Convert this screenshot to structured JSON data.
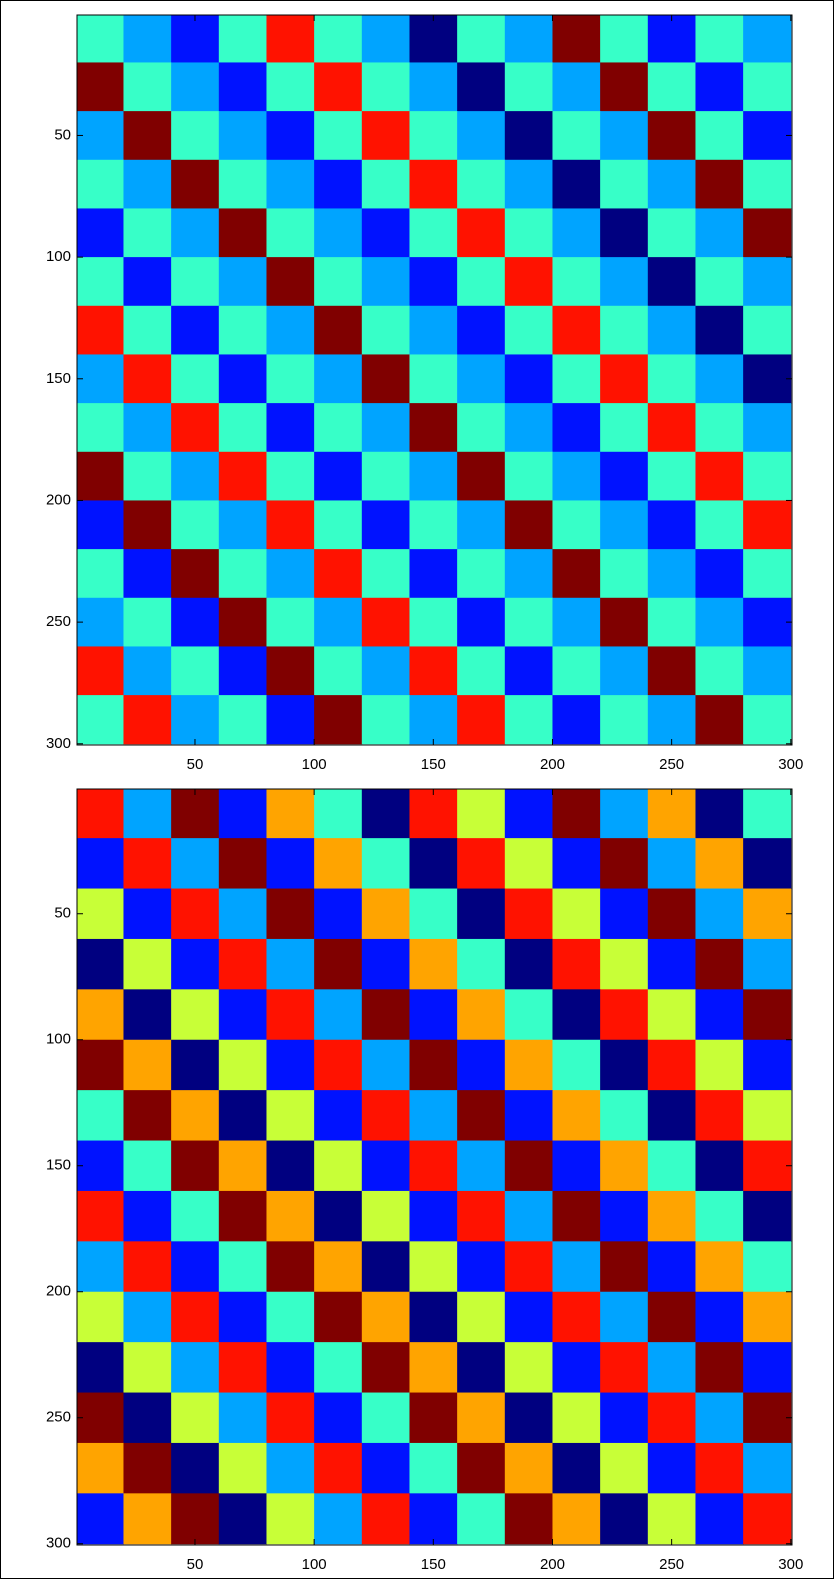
{
  "chart_data": [
    {
      "type": "heatmap",
      "colormap": "jet",
      "clim": [
        1,
        8
      ],
      "xlim": [
        0.5,
        300.5
      ],
      "ylim": [
        0.5,
        300.5
      ],
      "y_reversed": true,
      "xticks": [
        50,
        100,
        150,
        200,
        250,
        300
      ],
      "yticks": [
        50,
        100,
        150,
        200,
        250,
        300
      ],
      "x": [
        10,
        30,
        50,
        70,
        90,
        110,
        130,
        150,
        170,
        190,
        210,
        230,
        250,
        270,
        290
      ],
      "y": [
        10,
        30,
        50,
        70,
        90,
        110,
        130,
        150,
        170,
        190,
        210,
        230,
        250,
        270,
        290
      ],
      "z": [
        [
          4,
          3,
          2,
          4,
          7,
          4,
          3,
          1,
          4,
          3,
          8,
          4,
          2,
          4,
          3
        ],
        [
          8,
          4,
          3,
          2,
          4,
          7,
          4,
          3,
          1,
          4,
          3,
          8,
          4,
          2,
          4
        ],
        [
          3,
          8,
          4,
          3,
          2,
          4,
          7,
          4,
          3,
          1,
          4,
          3,
          8,
          4,
          2
        ],
        [
          4,
          3,
          8,
          4,
          3,
          2,
          4,
          7,
          4,
          3,
          1,
          4,
          3,
          8,
          4
        ],
        [
          2,
          4,
          3,
          8,
          4,
          3,
          2,
          4,
          7,
          4,
          3,
          1,
          4,
          3,
          8
        ],
        [
          4,
          2,
          4,
          3,
          8,
          4,
          3,
          2,
          4,
          7,
          4,
          3,
          1,
          4,
          3
        ],
        [
          7,
          4,
          2,
          4,
          3,
          8,
          4,
          3,
          2,
          4,
          7,
          4,
          3,
          1,
          4
        ],
        [
          3,
          7,
          4,
          2,
          4,
          3,
          8,
          4,
          3,
          2,
          4,
          7,
          4,
          3,
          1
        ],
        [
          4,
          3,
          7,
          4,
          2,
          4,
          3,
          8,
          4,
          3,
          2,
          4,
          7,
          4,
          3
        ],
        [
          8,
          4,
          3,
          7,
          4,
          2,
          4,
          3,
          8,
          4,
          3,
          2,
          4,
          7,
          4
        ],
        [
          2,
          8,
          4,
          3,
          7,
          4,
          2,
          4,
          3,
          8,
          4,
          3,
          2,
          4,
          7
        ],
        [
          4,
          2,
          8,
          4,
          3,
          7,
          4,
          2,
          4,
          3,
          8,
          4,
          3,
          2,
          4
        ],
        [
          3,
          4,
          2,
          8,
          4,
          3,
          7,
          4,
          2,
          4,
          3,
          8,
          4,
          3,
          2
        ],
        [
          7,
          3,
          4,
          2,
          8,
          4,
          3,
          7,
          4,
          2,
          4,
          3,
          8,
          4,
          3
        ],
        [
          4,
          7,
          3,
          4,
          2,
          8,
          4,
          3,
          7,
          4,
          2,
          4,
          3,
          8,
          4
        ]
      ]
    },
    {
      "type": "heatmap",
      "colormap": "jet",
      "clim": [
        1,
        8
      ],
      "xlim": [
        0.5,
        300.5
      ],
      "ylim": [
        0.5,
        300.5
      ],
      "y_reversed": true,
      "xticks": [
        50,
        100,
        150,
        200,
        250,
        300
      ],
      "yticks": [
        50,
        100,
        150,
        200,
        250,
        300
      ],
      "x": [
        10,
        30,
        50,
        70,
        90,
        110,
        130,
        150,
        170,
        190,
        210,
        230,
        250,
        270,
        290
      ],
      "y": [
        10,
        30,
        50,
        70,
        90,
        110,
        130,
        150,
        170,
        190,
        210,
        230,
        250,
        270,
        290
      ],
      "z": [
        [
          7,
          3,
          8,
          2,
          6,
          4,
          1,
          7,
          5,
          2,
          8,
          3,
          6,
          1,
          4
        ],
        [
          2,
          7,
          3,
          8,
          2,
          6,
          4,
          1,
          7,
          5,
          2,
          8,
          3,
          6,
          1
        ],
        [
          5,
          2,
          7,
          3,
          8,
          2,
          6,
          4,
          1,
          7,
          5,
          2,
          8,
          3,
          6
        ],
        [
          1,
          5,
          2,
          7,
          3,
          8,
          2,
          6,
          4,
          1,
          7,
          5,
          2,
          8,
          3
        ],
        [
          6,
          1,
          5,
          2,
          7,
          3,
          8,
          2,
          6,
          4,
          1,
          7,
          5,
          2,
          8
        ],
        [
          8,
          6,
          1,
          5,
          2,
          7,
          3,
          8,
          2,
          6,
          4,
          1,
          7,
          5,
          2
        ],
        [
          4,
          8,
          6,
          1,
          5,
          2,
          7,
          3,
          8,
          2,
          6,
          4,
          1,
          7,
          5
        ],
        [
          2,
          4,
          8,
          6,
          1,
          5,
          2,
          7,
          3,
          8,
          2,
          6,
          4,
          1,
          7
        ],
        [
          7,
          2,
          4,
          8,
          6,
          1,
          5,
          2,
          7,
          3,
          8,
          2,
          6,
          4,
          1
        ],
        [
          3,
          7,
          2,
          4,
          8,
          6,
          1,
          5,
          2,
          7,
          3,
          8,
          2,
          6,
          4
        ],
        [
          5,
          3,
          7,
          2,
          4,
          8,
          6,
          1,
          5,
          2,
          7,
          3,
          8,
          2,
          6
        ],
        [
          1,
          5,
          3,
          7,
          2,
          4,
          8,
          6,
          1,
          5,
          2,
          7,
          3,
          8,
          2
        ],
        [
          8,
          1,
          5,
          3,
          7,
          2,
          4,
          8,
          6,
          1,
          5,
          2,
          7,
          3,
          8
        ],
        [
          6,
          8,
          1,
          5,
          3,
          7,
          2,
          4,
          8,
          6,
          1,
          5,
          2,
          7,
          3
        ],
        [
          2,
          6,
          8,
          1,
          5,
          3,
          7,
          2,
          4,
          8,
          6,
          1,
          5,
          2,
          7
        ]
      ]
    }
  ]
}
